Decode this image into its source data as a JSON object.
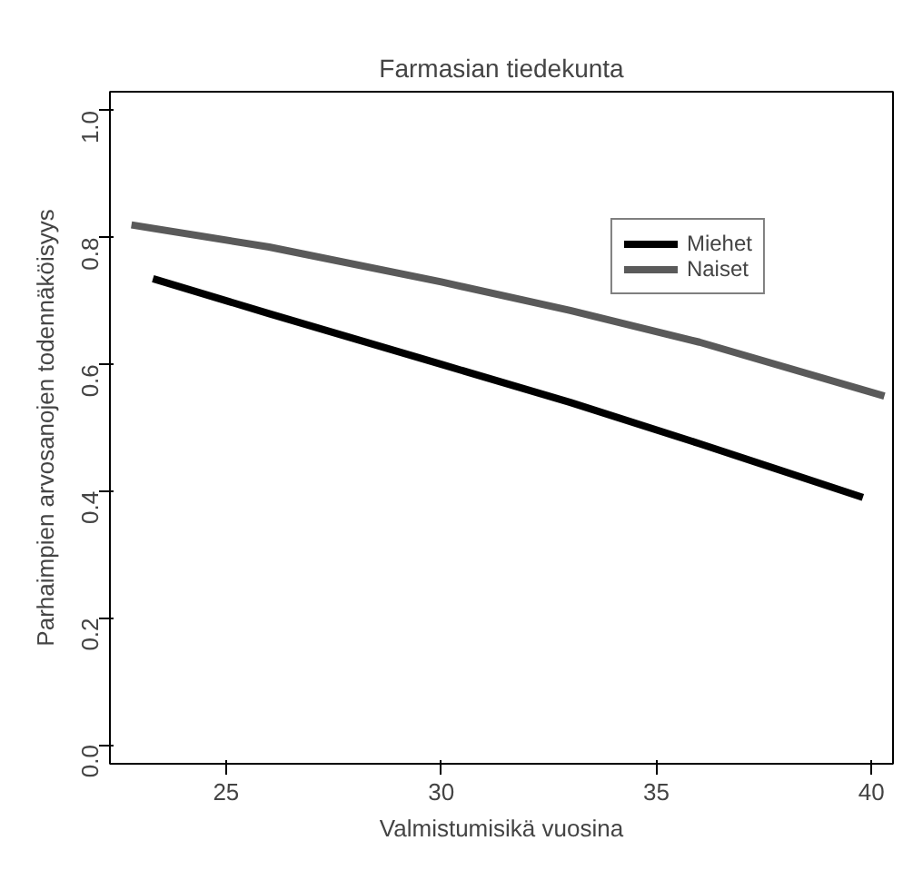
{
  "chart_data": {
    "type": "line",
    "title": "Farmasian tiedekunta",
    "xlabel": "Valmistumisikä vuosina",
    "ylabel": "Parhaimpien arvosanojen todennäköisyys",
    "series": [
      {
        "name": "Miehet",
        "color": "#000000",
        "x": [
          23.3,
          26,
          30,
          33,
          36,
          39.8
        ],
        "values": [
          0.735,
          0.68,
          0.6,
          0.54,
          0.475,
          0.39
        ]
      },
      {
        "name": "Naiset",
        "color": "#5a5a5a",
        "x": [
          22.8,
          26,
          30,
          33,
          36,
          40.3
        ],
        "values": [
          0.82,
          0.785,
          0.73,
          0.685,
          0.635,
          0.55
        ]
      }
    ],
    "xlim": [
      22.3,
      40.5
    ],
    "ylim": [
      -0.03,
      1.03
    ],
    "xticks": [
      25,
      30,
      35,
      40
    ],
    "yticks": [
      {
        "value": 0,
        "label": "0.0"
      },
      {
        "value": 0.2,
        "label": "0.2"
      },
      {
        "value": 0.4,
        "label": "0.4"
      },
      {
        "value": 0.6,
        "label": "0.6"
      },
      {
        "value": 0.8,
        "label": "0.8"
      },
      {
        "value": 1,
        "label": "1.0"
      }
    ],
    "grid": false,
    "legend": "top right",
    "line_style": "solid",
    "marker": "none"
  }
}
